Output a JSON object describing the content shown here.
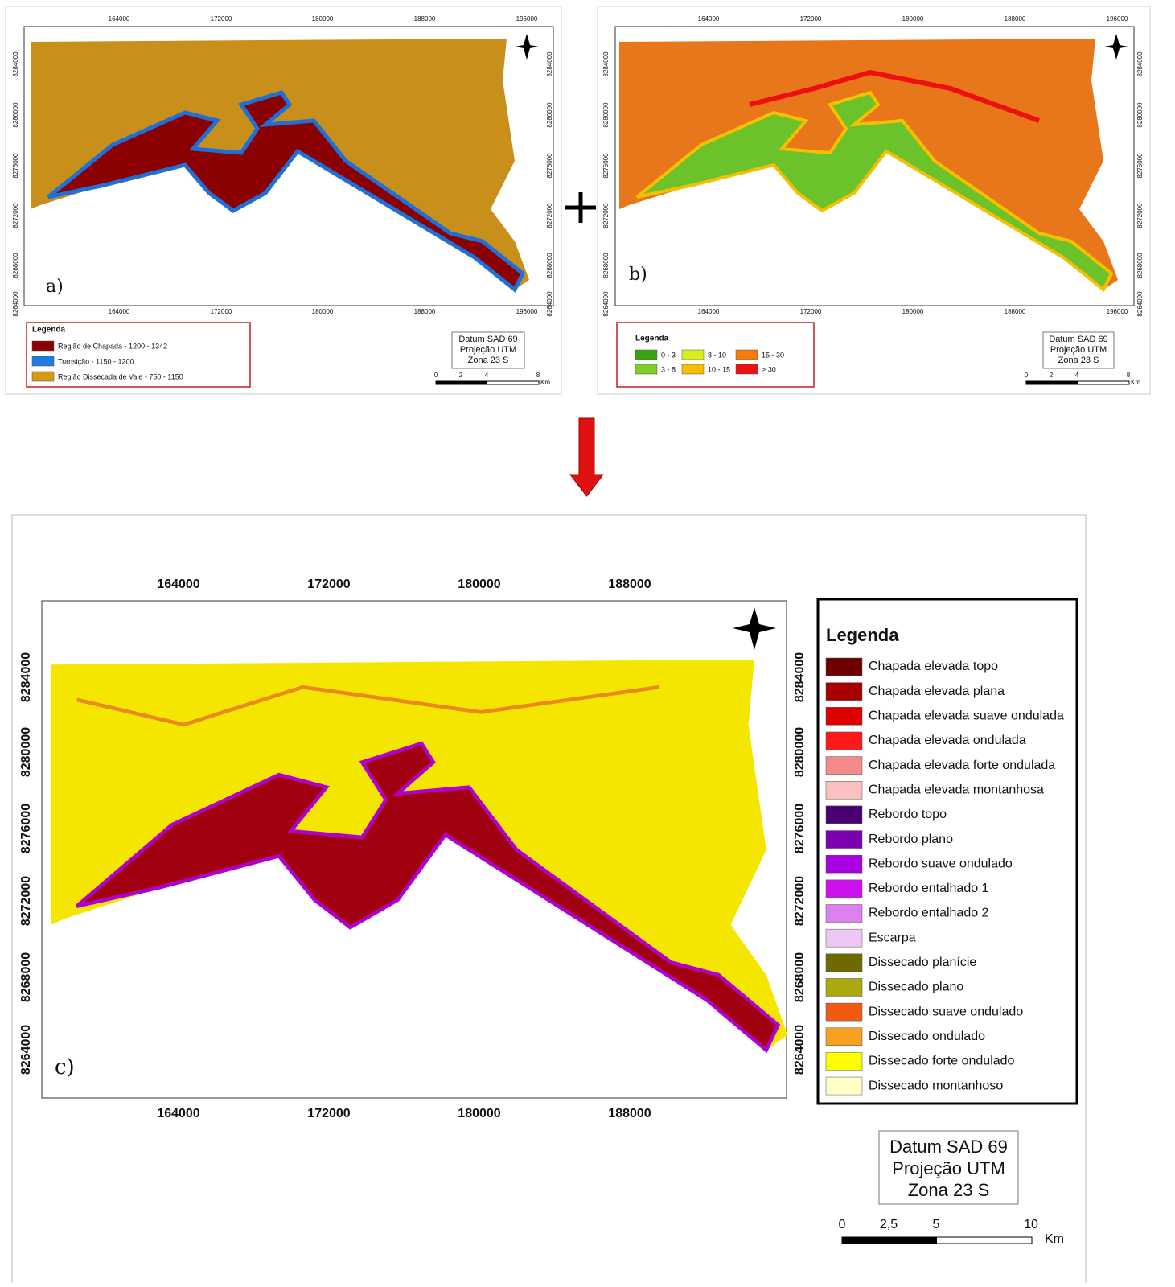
{
  "panel_a": {
    "label": "a)",
    "x_ticks": [
      "164000",
      "172000",
      "180000",
      "188000",
      "196000"
    ],
    "y_ticks": [
      "8284000",
      "8280000",
      "8276000",
      "8272000",
      "8268000",
      "8264000"
    ],
    "legend_title": "Legenda",
    "legend_items": [
      {
        "label": "Região de Chapada - 1200 - 1342",
        "color": "#8b0000"
      },
      {
        "label": "Transição - 1150 - 1200",
        "color": "#1e7be0"
      },
      {
        "label": "Região Dissecada de Vale - 750 - 1150",
        "color": "#d89a10"
      }
    ],
    "datum": [
      "Datum SAD 69",
      "Projeção UTM",
      "Zona 23 S"
    ],
    "scale_labels": [
      "0",
      "2",
      "4",
      "8"
    ],
    "scale_unit": "Km"
  },
  "panel_b": {
    "label": "b)",
    "x_ticks": [
      "164000",
      "172000",
      "180000",
      "188000",
      "196000"
    ],
    "y_ticks": [
      "8284000",
      "8280000",
      "8276000",
      "8272000",
      "8268000",
      "8264000"
    ],
    "legend_title": "Legenda",
    "legend_items": [
      {
        "label": "0 - 3",
        "color": "#3aa312"
      },
      {
        "label": "3 - 8",
        "color": "#80cc28"
      },
      {
        "label": "8 - 10",
        "color": "#d8ee20"
      },
      {
        "label": "10 - 15",
        "color": "#f5c000"
      },
      {
        "label": "15 - 30",
        "color": "#f57a10"
      },
      {
        "label": "> 30",
        "color": "#ee1010"
      }
    ],
    "datum": [
      "Datum SAD 69",
      "Projeção UTM",
      "Zona 23 S"
    ],
    "scale_labels": [
      "0",
      "2",
      "4",
      "8"
    ],
    "scale_unit": "Km"
  },
  "panel_c": {
    "label": "c)",
    "x_ticks": [
      "164000",
      "172000",
      "180000",
      "188000"
    ],
    "y_ticks": [
      "8284000",
      "8280000",
      "8276000",
      "8272000",
      "8268000",
      "8264000"
    ],
    "legend_title": "Legenda",
    "legend_items": [
      {
        "label": "Chapada elevada topo",
        "color": "#6e0000"
      },
      {
        "label": "Chapada elevada plana",
        "color": "#a80000"
      },
      {
        "label": "Chapada elevada suave ondulada",
        "color": "#dd0000"
      },
      {
        "label": "Chapada elevada ondulada",
        "color": "#ff1a1a"
      },
      {
        "label": "Chapada elevada forte ondulada",
        "color": "#f58a8a"
      },
      {
        "label": "Chapada elevada montanhosa",
        "color": "#fcc0c0"
      },
      {
        "label": "Rebordo topo",
        "color": "#4a0070"
      },
      {
        "label": "Rebordo plano",
        "color": "#7a00b0"
      },
      {
        "label": "Rebordo suave ondulado",
        "color": "#a800e0"
      },
      {
        "label": "Rebordo entalhado 1",
        "color": "#cc10f0"
      },
      {
        "label": "Rebordo entalhado 2",
        "color": "#dd80f0"
      },
      {
        "label": "Escarpa",
        "color": "#eec8f5"
      },
      {
        "label": "Dissecado planície",
        "color": "#6e6a00"
      },
      {
        "label": "Dissecado plano",
        "color": "#aaaa10"
      },
      {
        "label": "Dissecado suave ondulado",
        "color": "#f05a10"
      },
      {
        "label": "Dissecado ondulado",
        "color": "#f8a020"
      },
      {
        "label": "Dissecado forte ondulado",
        "color": "#ffff00"
      },
      {
        "label": "Dissecado montanhoso",
        "color": "#ffffc8"
      }
    ],
    "datum": [
      "Datum SAD 69",
      "Projeção UTM",
      "Zona 23 S"
    ],
    "scale_labels": [
      "0",
      "2,5",
      "5",
      "10"
    ],
    "scale_unit": "Km"
  }
}
